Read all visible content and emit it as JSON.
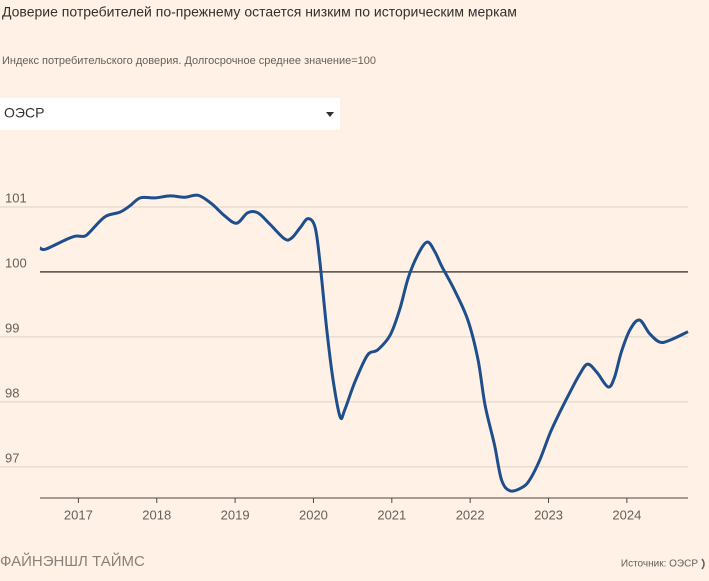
{
  "chart_data": {
    "type": "line",
    "title": "Доверие потребителей по-прежнему остается низким по историческим меркам",
    "subtitle": "Индекс потребительского доверия. Долгосрочное среднее значение=100",
    "x": [
      2016.51,
      2016.58,
      2016.83,
      2016.96,
      2017.08,
      2017.15,
      2017.34,
      2017.53,
      2017.66,
      2017.79,
      2017.98,
      2018.17,
      2018.36,
      2018.53,
      2018.7,
      2018.87,
      2019.02,
      2019.16,
      2019.29,
      2019.44,
      2019.63,
      2019.72,
      2019.83,
      2019.93,
      2020.02,
      2020.08,
      2020.17,
      2020.25,
      2020.34,
      2020.4,
      2020.53,
      2020.69,
      2020.82,
      2020.98,
      2021.1,
      2021.21,
      2021.33,
      2021.45,
      2021.55,
      2021.64,
      2021.8,
      2021.97,
      2022.1,
      2022.19,
      2022.31,
      2022.4,
      2022.51,
      2022.66,
      2022.76,
      2022.89,
      2023.02,
      2023.14,
      2023.27,
      2023.4,
      2023.5,
      2023.62,
      2023.76,
      2023.84,
      2023.93,
      2024.04,
      2024.16,
      2024.29,
      2024.42,
      2024.55,
      2024.78
    ],
    "series": [
      {
        "name": "ОЭСР",
        "color": "#1f4e8c",
        "values": [
          100.37,
          100.35,
          100.49,
          100.55,
          100.55,
          100.62,
          100.85,
          100.92,
          101.02,
          101.14,
          101.14,
          101.17,
          101.15,
          101.18,
          101.05,
          100.86,
          100.75,
          100.91,
          100.91,
          100.74,
          100.51,
          100.52,
          100.68,
          100.82,
          100.69,
          100.18,
          99.11,
          98.34,
          97.77,
          97.88,
          98.31,
          98.72,
          98.8,
          99.03,
          99.42,
          99.91,
          100.26,
          100.46,
          100.31,
          100.08,
          99.72,
          99.26,
          98.65,
          97.95,
          97.34,
          96.8,
          96.63,
          96.68,
          96.8,
          97.11,
          97.52,
          97.83,
          98.14,
          98.43,
          98.58,
          98.45,
          98.23,
          98.37,
          98.77,
          99.11,
          99.26,
          99.05,
          98.92,
          98.95,
          99.08
        ]
      }
    ],
    "xlim": [
      2016.51,
      2024.78
    ],
    "xticks": [
      2017,
      2018,
      2019,
      2020,
      2021,
      2022,
      2023,
      2024
    ],
    "ylim": [
      96.52,
      101.8
    ],
    "yticks": [
      97,
      98,
      99,
      100,
      101
    ],
    "baseline": 100,
    "grid": true
  },
  "dropdown": {
    "selected": "ОЭСР"
  },
  "footer": {
    "brand": "ФАЙНЭНШЛ ТАЙМС",
    "source": "Источник: ОЭСР"
  }
}
